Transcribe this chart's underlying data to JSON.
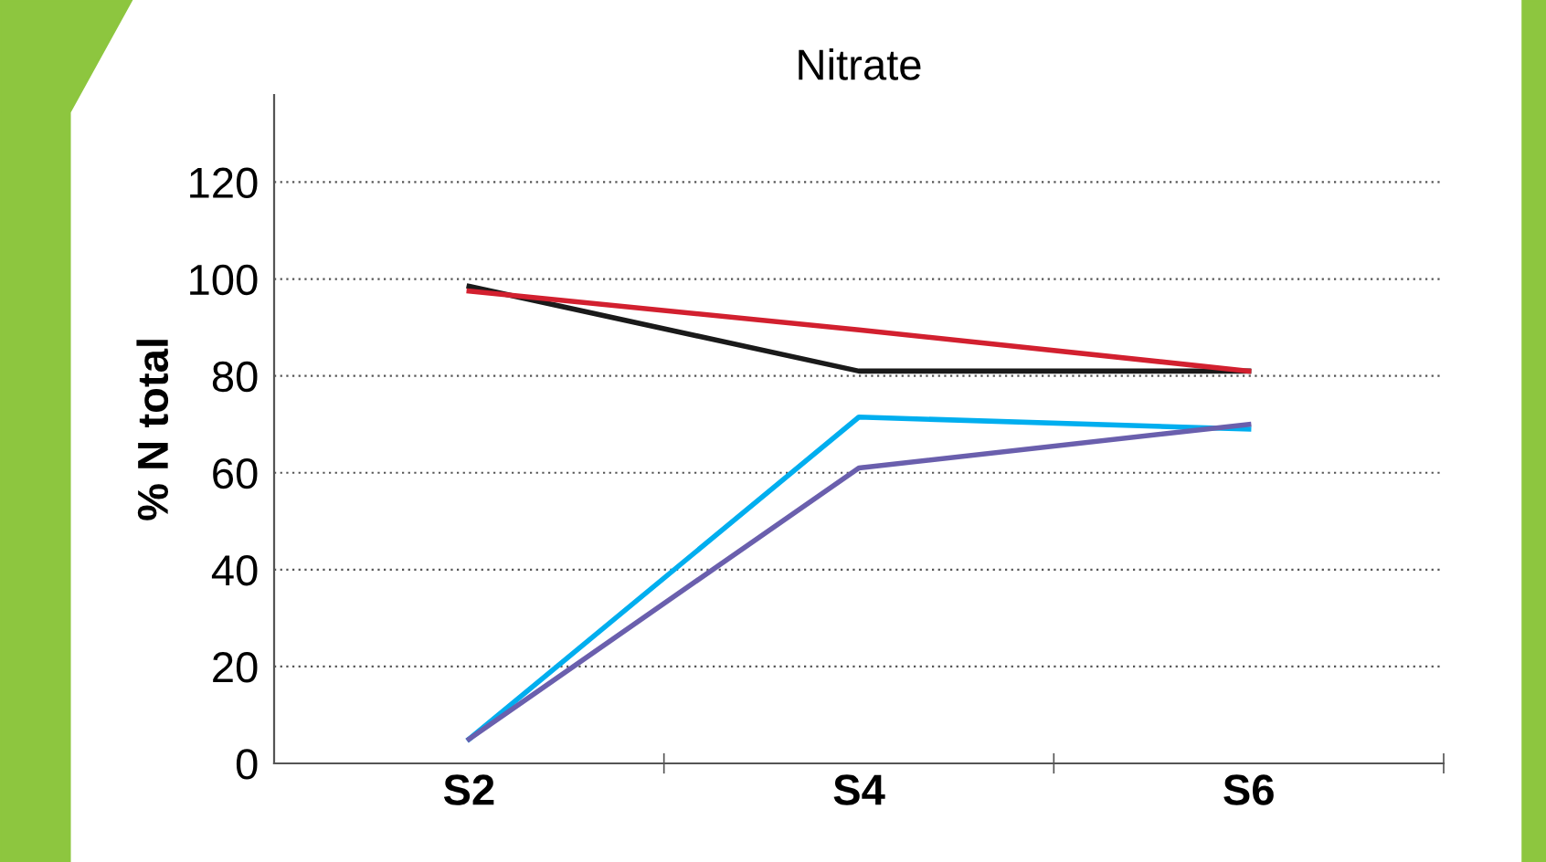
{
  "chart_data": {
    "type": "line",
    "title": "Nitrate",
    "ylabel": "% N total",
    "categories": [
      "S2",
      "S4",
      "S6"
    ],
    "series": [
      {
        "color": "#1a1a1a",
        "values": [
          98.5,
          81,
          81
        ]
      },
      {
        "color": "#d2202f",
        "values": [
          97.5,
          89.5,
          81
        ]
      },
      {
        "color": "#00aeef",
        "values": [
          5,
          71.5,
          69
        ]
      },
      {
        "color": "#6a5fad",
        "values": [
          5,
          61,
          70
        ]
      }
    ],
    "ylim": [
      0,
      138
    ],
    "yticks": [
      0,
      20,
      40,
      60,
      80,
      100,
      120
    ],
    "grid": "y",
    "line_style": "solid",
    "marker": "none"
  }
}
